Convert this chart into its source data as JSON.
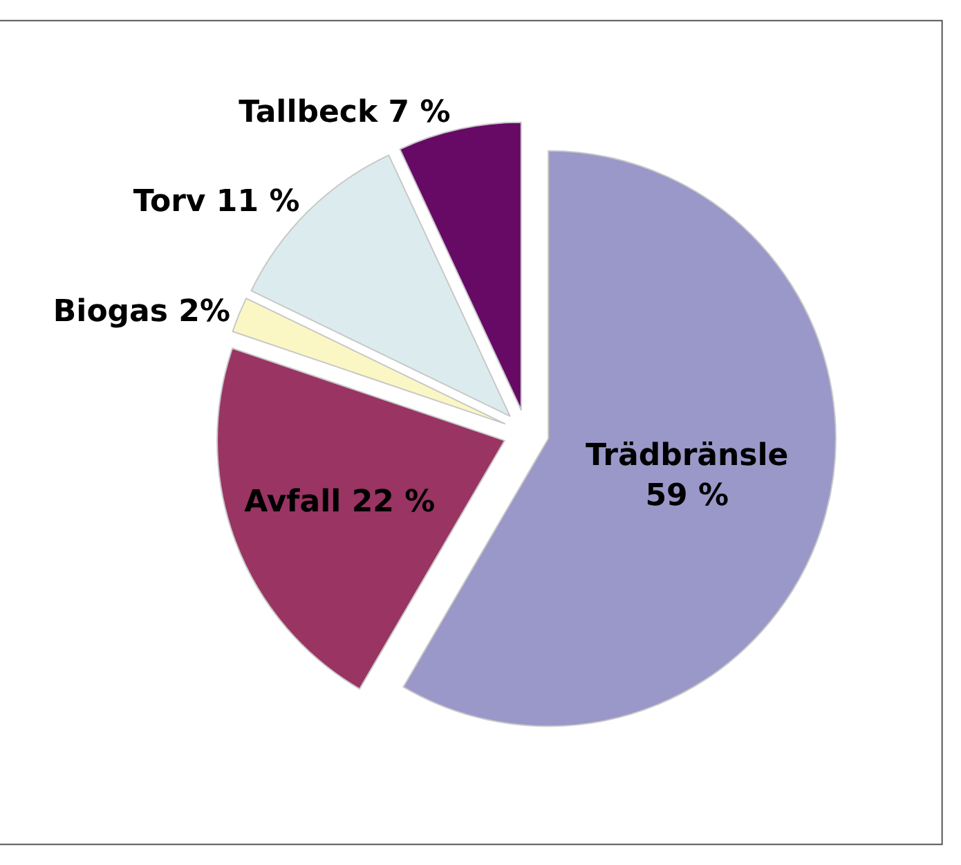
{
  "chart_data": {
    "type": "pie",
    "categories": [
      "Trädbränsle",
      "Avfall",
      "Biogas",
      "Torv",
      "Tallbeck"
    ],
    "values": [
      59,
      22,
      2,
      11,
      7
    ],
    "value_labels": [
      "59 %",
      "22 %",
      "2%",
      "11 %",
      "7 %"
    ],
    "colors": [
      "#9a97c9",
      "#993463",
      "#fbf7c4",
      "#dcecee",
      "#660a66"
    ],
    "legend": false
  }
}
